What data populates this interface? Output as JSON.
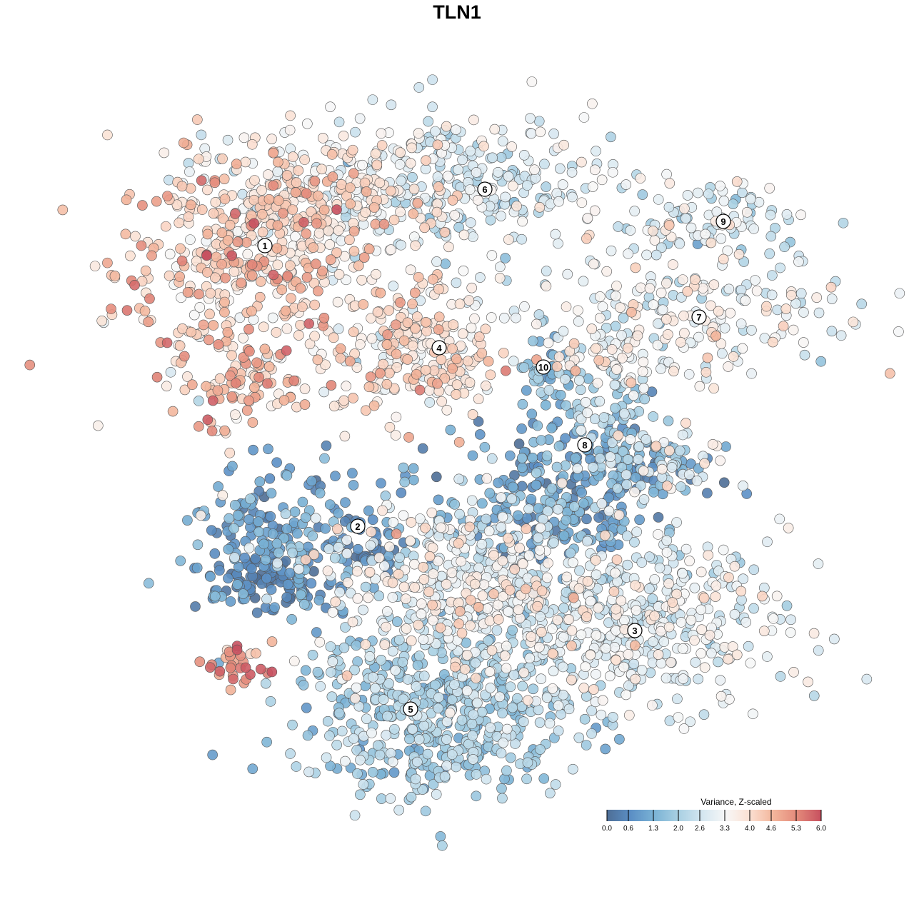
{
  "chart_data": {
    "type": "scatter",
    "title": "TLN1",
    "xlabel": "",
    "ylabel": "",
    "xlim": [
      -45,
      50
    ],
    "ylim": [
      -46,
      46
    ],
    "grid": false,
    "legend": {
      "title": "Variance, Z-scaled",
      "placement": "bottom-right",
      "ticks": [
        "0.0",
        "0.6",
        "1.3",
        "2.0",
        "2.6",
        "3.3",
        "4.0",
        "4.6",
        "5.3",
        "6.0"
      ],
      "range": [
        0,
        6
      ],
      "colors": [
        "#4e6e96",
        "#5b8fc5",
        "#7bb3d5",
        "#a9d0e3",
        "#d4e6f0",
        "#f7f7f7",
        "#fbe0d2",
        "#f3b59b",
        "#e3897a",
        "#c7505f"
      ]
    },
    "point_groups": [
      {
        "cluster": "1",
        "cx": -31,
        "cy": 26,
        "sx": 8.5,
        "sy": 8.5,
        "n": 360,
        "mean": 4.2,
        "sd": 0.7
      },
      {
        "cluster": "1",
        "cx": -21,
        "cy": 36,
        "sx": 9,
        "sy": 5,
        "n": 260,
        "mean": 3.7,
        "sd": 0.6
      },
      {
        "cluster": "1",
        "cx": -30,
        "cy": 10,
        "sx": 4,
        "sy": 3,
        "n": 60,
        "mean": 4.5,
        "sd": 0.6
      },
      {
        "cluster": "6",
        "cx": 1,
        "cy": 38,
        "sx": 11,
        "sy": 5,
        "n": 300,
        "mean": 2.8,
        "sd": 0.6
      },
      {
        "cluster": "4",
        "cx": -6,
        "cy": 15,
        "sx": 6,
        "sy": 5,
        "n": 250,
        "mean": 3.8,
        "sd": 0.6
      },
      {
        "cluster": "10",
        "cx": 12.5,
        "cy": 12.5,
        "sx": 2,
        "sy": 3,
        "n": 40,
        "mean": 1.5,
        "sd": 0.5
      },
      {
        "cluster": "9",
        "cx": 35,
        "cy": 33,
        "sx": 7,
        "sy": 3,
        "n": 90,
        "mean": 2.8,
        "sd": 0.6
      },
      {
        "cluster": "7",
        "cx": 32,
        "cy": 20,
        "sx": 12,
        "sy": 4,
        "n": 200,
        "mean": 3.0,
        "sd": 0.7
      },
      {
        "cluster": "7",
        "cx": 24,
        "cy": 13,
        "sx": 5,
        "sy": 2,
        "n": 50,
        "mean": 3.6,
        "sd": 0.5
      },
      {
        "cluster": "8",
        "cx": 21,
        "cy": 8,
        "sx": 3,
        "sy": 4,
        "n": 60,
        "mean": 2.2,
        "sd": 0.6
      },
      {
        "cluster": "8",
        "cx": 18,
        "cy": 0,
        "sx": 8,
        "sy": 3,
        "n": 120,
        "mean": 1.0,
        "sd": 0.6
      },
      {
        "cluster": "8",
        "cx": 29,
        "cy": -1,
        "sx": 5,
        "sy": 3,
        "n": 70,
        "mean": 2.5,
        "sd": 0.9
      },
      {
        "cluster": "2",
        "cx": -24,
        "cy": -12,
        "sx": 7,
        "sy": 5,
        "n": 200,
        "mean": 1.0,
        "sd": 0.5
      },
      {
        "cluster": "2",
        "cx": -27,
        "cy": -17,
        "sx": 4,
        "sy": 2,
        "n": 80,
        "mean": 0.3,
        "sd": 0.3
      },
      {
        "cluster": "2",
        "cx": -12,
        "cy": -13,
        "sx": 2,
        "sy": 2,
        "n": 30,
        "mean": 0.4,
        "sd": 0.3
      },
      {
        "cluster": "8",
        "cx": 12,
        "cy": -8,
        "sx": 8,
        "sy": 4,
        "n": 200,
        "mean": 1.0,
        "sd": 0.6
      },
      {
        "cluster": "3",
        "cx": 24,
        "cy": -23,
        "sx": 11,
        "sy": 6,
        "n": 450,
        "mean": 2.9,
        "sd": 0.6
      },
      {
        "cluster": "3",
        "cx": 1,
        "cy": -18,
        "sx": 10,
        "sy": 6,
        "n": 400,
        "mean": 3.1,
        "sd": 0.6
      },
      {
        "cluster": "5",
        "cx": -3,
        "cy": -36,
        "sx": 10,
        "sy": 6,
        "n": 500,
        "mean": 1.9,
        "sd": 0.5
      },
      {
        "cluster": "",
        "cx": -30.5,
        "cy": -28.5,
        "sx": 3.5,
        "sy": 1.5,
        "n": 30,
        "mean": 5.3,
        "sd": 0.5
      }
    ],
    "cluster_labels": [
      {
        "label": "1",
        "x": -26.9,
        "y": 29.6
      },
      {
        "label": "2",
        "x": -13.9,
        "y": -9.7
      },
      {
        "label": "3",
        "x": 24.9,
        "y": -24.3
      },
      {
        "label": "4",
        "x": -2.5,
        "y": 15.3
      },
      {
        "label": "5",
        "x": -6.5,
        "y": -35.3
      },
      {
        "label": "6",
        "x": 3.9,
        "y": 37.5
      },
      {
        "label": "7",
        "x": 33.9,
        "y": 19.6
      },
      {
        "label": "8",
        "x": 17.9,
        "y": 1.7
      },
      {
        "label": "9",
        "x": 37.3,
        "y": 33.0
      },
      {
        "label": "10",
        "x": 12.1,
        "y": 12.6
      }
    ]
  }
}
